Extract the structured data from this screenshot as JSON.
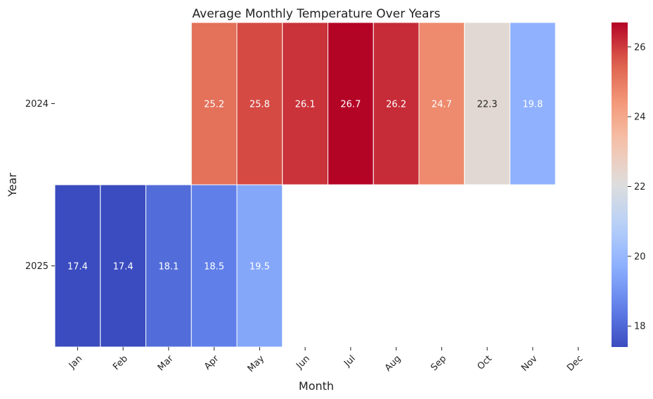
{
  "chart_data": {
    "type": "heatmap",
    "title": "Average Monthly Temperature Over Years",
    "xlabel": "Month",
    "ylabel": "Year",
    "x_categories": [
      "Jan",
      "Feb",
      "Mar",
      "Apr",
      "May",
      "Jun",
      "Jul",
      "Aug",
      "Sep",
      "Oct",
      "Nov",
      "Dec"
    ],
    "y_categories": [
      "2024",
      "2025"
    ],
    "values": [
      [
        null,
        null,
        null,
        25.2,
        25.8,
        26.1,
        26.7,
        26.2,
        24.7,
        22.3,
        19.8,
        null
      ],
      [
        17.4,
        17.4,
        18.1,
        18.5,
        19.5,
        null,
        null,
        null,
        null,
        null,
        null,
        null
      ]
    ],
    "colormap": "coolwarm",
    "value_range": [
      17.4,
      26.7
    ],
    "colorbar_ticks": [
      18,
      20,
      22,
      24,
      26
    ],
    "annotated": true,
    "grid": false
  }
}
